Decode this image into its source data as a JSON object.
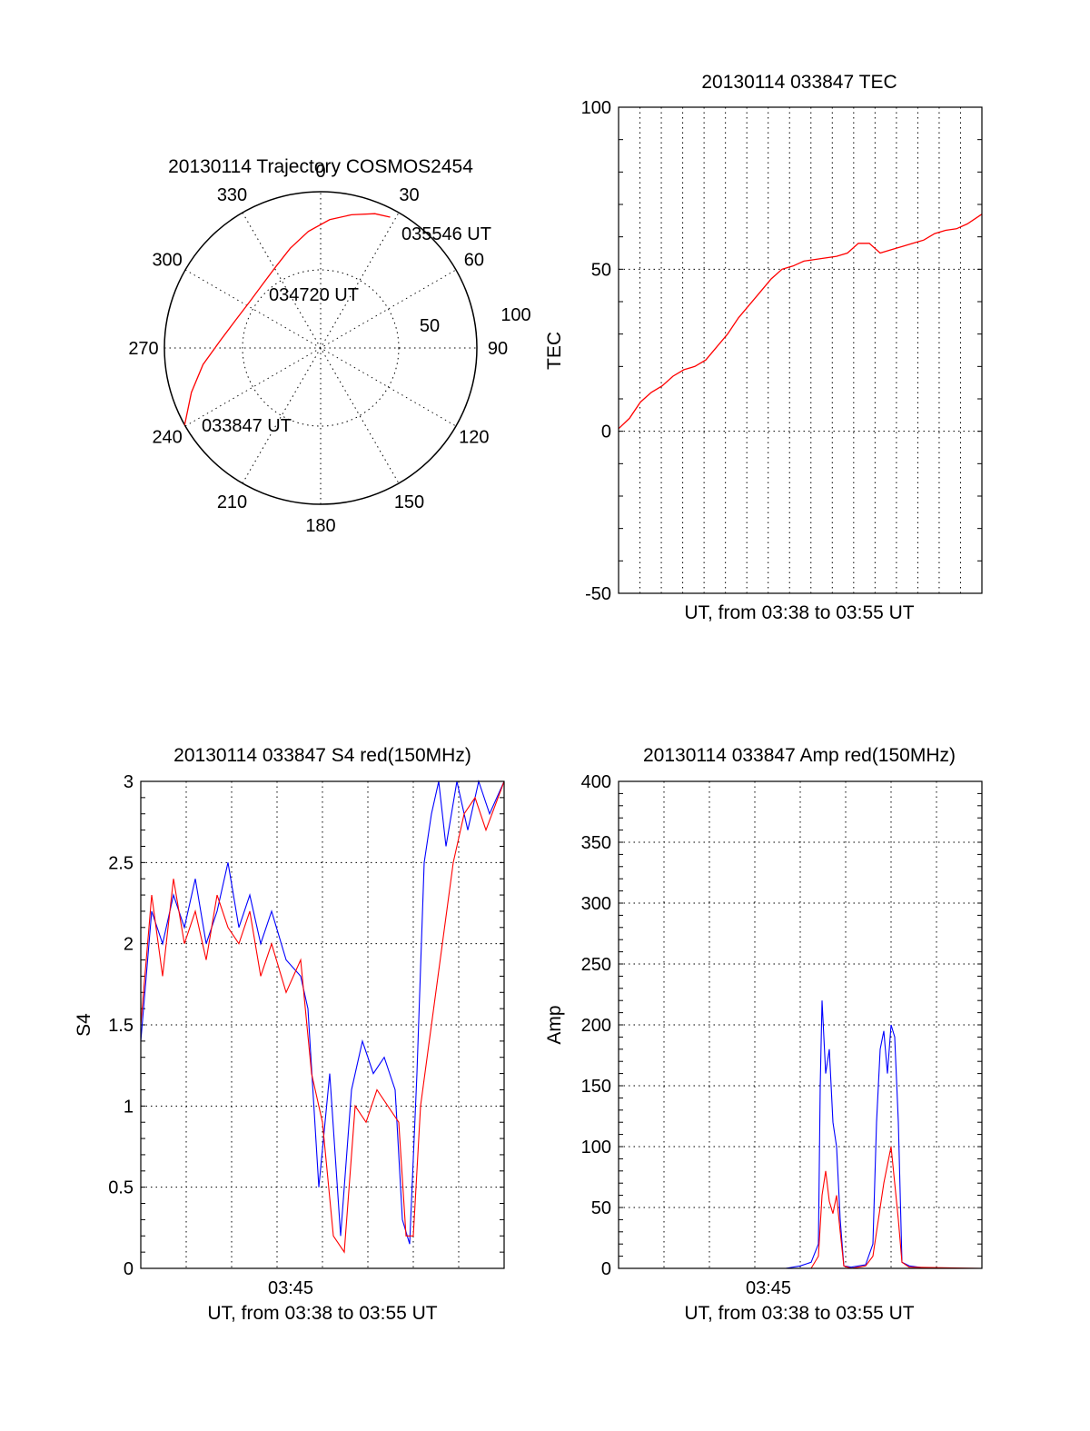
{
  "chart_data": [
    {
      "type": "scatter",
      "subtype": "polar-trajectory",
      "title": "20130114 Trajectory COSMOS2454",
      "azimuth_labels": [
        "0",
        "30",
        "60",
        "90",
        "120",
        "150",
        "180",
        "210",
        "240",
        "270",
        "300",
        "330"
      ],
      "elevation_labels": [
        "50",
        "100"
      ],
      "elevation_ring_radius": 50,
      "trajectory_color": "#ff0000",
      "annotations": [
        "035546 UT",
        "034720 UT",
        "033847 UT"
      ],
      "trajectory": [
        {
          "az": 240.5,
          "zenith": 96
        },
        {
          "az": 251,
          "zenith": 84
        },
        {
          "az": 262,
          "zenith": 73
        },
        {
          "az": 274,
          "zenith": 62
        },
        {
          "az": 288,
          "zenith": 55
        },
        {
          "az": 304,
          "zenith": 52
        },
        {
          "az": 318,
          "zenith": 53
        },
        {
          "az": 331,
          "zenith": 57
        },
        {
          "az": 343,
          "zenith": 64
        },
        {
          "az": 354,
          "zenith": 72
        },
        {
          "az": 4,
          "zenith": 79
        },
        {
          "az": 13,
          "zenith": 84
        },
        {
          "az": 22,
          "zenith": 89
        },
        {
          "az": 28,
          "zenith": 91
        }
      ]
    },
    {
      "type": "line",
      "title": "20130114 033847 TEC",
      "xlabel": "UT, from 03:38 to 03:55 UT",
      "ylabel": "TEC",
      "ylim": [
        -50,
        100
      ],
      "yticks": [
        "-50",
        "0",
        "50",
        "100"
      ],
      "grid": true,
      "series": [
        {
          "color": "#ff0000",
          "x_frac": [
            0.0,
            0.03,
            0.06,
            0.09,
            0.12,
            0.15,
            0.18,
            0.21,
            0.24,
            0.27,
            0.3,
            0.33,
            0.36,
            0.39,
            0.42,
            0.45,
            0.48,
            0.51,
            0.54,
            0.57,
            0.6,
            0.63,
            0.66,
            0.69,
            0.72,
            0.75,
            0.78,
            0.81,
            0.84,
            0.87,
            0.9,
            0.93,
            0.96,
            1.0
          ],
          "values": [
            0.8,
            4,
            9,
            12,
            14,
            17,
            19,
            20,
            22,
            26,
            30,
            35,
            39,
            43,
            47,
            50,
            51,
            52.5,
            53,
            53.5,
            54,
            55,
            58,
            58,
            55,
            56,
            57,
            58,
            59,
            61,
            62,
            62.5,
            64,
            67
          ]
        }
      ]
    },
    {
      "type": "line",
      "title": "20130114 033847 S4 red(150MHz)",
      "xlabel": "UT, from 03:38 to 03:55 UT",
      "xtick_labels": [
        "03:45"
      ],
      "ylabel": "S4",
      "ylim": [
        0,
        3
      ],
      "yticks": [
        "0",
        "0.5",
        "1",
        "1.5",
        "2",
        "2.5",
        "3"
      ],
      "grid": true,
      "series": [
        {
          "color": "#0000ff",
          "x_frac": [
            0.0,
            0.03,
            0.06,
            0.09,
            0.12,
            0.15,
            0.18,
            0.21,
            0.24,
            0.27,
            0.3,
            0.33,
            0.36,
            0.4,
            0.44,
            0.46,
            0.49,
            0.52,
            0.55,
            0.58,
            0.61,
            0.64,
            0.67,
            0.7,
            0.72,
            0.74,
            0.76,
            0.78,
            0.8,
            0.82,
            0.84,
            0.87,
            0.9,
            0.93,
            0.96,
            1.0
          ],
          "values": [
            1.4,
            2.2,
            2.0,
            2.3,
            2.1,
            2.4,
            2.0,
            2.2,
            2.5,
            2.1,
            2.3,
            2.0,
            2.2,
            1.9,
            1.8,
            1.6,
            0.5,
            1.2,
            0.2,
            1.1,
            1.4,
            1.2,
            1.3,
            1.1,
            0.3,
            0.15,
            1.2,
            2.5,
            2.8,
            3.0,
            2.6,
            3.0,
            2.7,
            3.0,
            2.8,
            3.0
          ]
        },
        {
          "color": "#ff0000",
          "x_frac": [
            0.0,
            0.03,
            0.06,
            0.09,
            0.12,
            0.15,
            0.18,
            0.21,
            0.24,
            0.27,
            0.3,
            0.33,
            0.36,
            0.4,
            0.44,
            0.47,
            0.5,
            0.53,
            0.56,
            0.59,
            0.62,
            0.65,
            0.68,
            0.71,
            0.73,
            0.75,
            0.77,
            0.8,
            0.83,
            0.86,
            0.89,
            0.92,
            0.95,
            1.0
          ],
          "values": [
            1.5,
            2.3,
            1.8,
            2.4,
            2.0,
            2.2,
            1.9,
            2.3,
            2.1,
            2.0,
            2.2,
            1.8,
            2.0,
            1.7,
            1.9,
            1.2,
            0.9,
            0.2,
            0.1,
            1.0,
            0.9,
            1.1,
            1.0,
            0.9,
            0.2,
            0.2,
            1.0,
            1.5,
            2.0,
            2.5,
            2.8,
            2.9,
            2.7,
            3.0
          ]
        }
      ]
    },
    {
      "type": "line",
      "title": "20130114 033847 Amp red(150MHz)",
      "xlabel": "UT, from 03:38 to 03:55 UT",
      "xtick_labels": [
        "03:45"
      ],
      "ylabel": "Amp",
      "ylim": [
        0,
        400
      ],
      "yticks": [
        "0",
        "50",
        "100",
        "150",
        "200",
        "250",
        "300",
        "350",
        "400"
      ],
      "grid": true,
      "series": [
        {
          "color": "#0000ff",
          "x_frac": [
            0.0,
            0.46,
            0.5,
            0.53,
            0.55,
            0.555,
            0.56,
            0.57,
            0.58,
            0.59,
            0.6,
            0.61,
            0.62,
            0.64,
            0.68,
            0.7,
            0.71,
            0.72,
            0.73,
            0.74,
            0.75,
            0.76,
            0.77,
            0.78,
            0.8,
            0.85,
            1.0
          ],
          "values": [
            0,
            0,
            2,
            5,
            20,
            150,
            220,
            160,
            180,
            120,
            100,
            40,
            2,
            1,
            3,
            20,
            120,
            180,
            195,
            160,
            200,
            190,
            120,
            5,
            2,
            0,
            0
          ]
        },
        {
          "color": "#ff0000",
          "x_frac": [
            0.0,
            0.53,
            0.55,
            0.56,
            0.57,
            0.58,
            0.59,
            0.6,
            0.61,
            0.62,
            0.64,
            0.68,
            0.7,
            0.71,
            0.72,
            0.73,
            0.74,
            0.75,
            0.76,
            0.77,
            0.78,
            0.8,
            1.0
          ],
          "values": [
            0,
            0,
            10,
            60,
            80,
            55,
            45,
            60,
            30,
            2,
            0,
            2,
            10,
            30,
            50,
            70,
            85,
            100,
            70,
            40,
            5,
            1,
            0
          ]
        }
      ]
    }
  ]
}
